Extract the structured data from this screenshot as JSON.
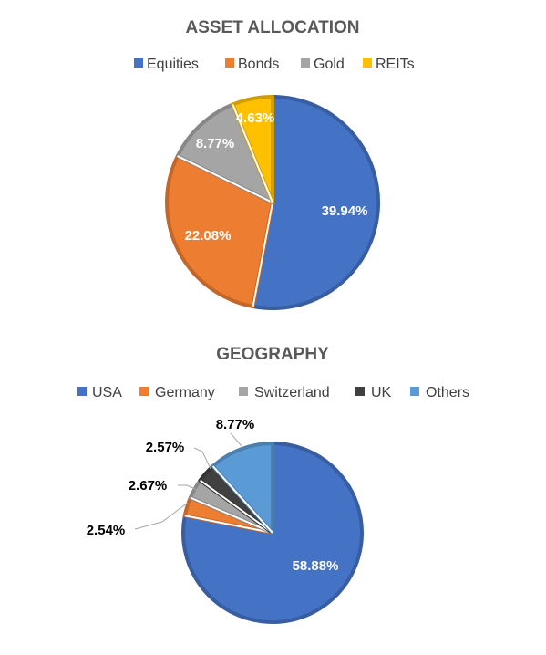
{
  "chart_data": [
    {
      "type": "pie",
      "title": "ASSET ALLOCATION",
      "legend_position": "top",
      "categories": [
        "Equities",
        "Bonds",
        "Gold",
        "REITs"
      ],
      "values": [
        39.94,
        22.08,
        8.77,
        4.63
      ],
      "labels": [
        "39.94%",
        "22.08%",
        "8.77%",
        "4.63%"
      ],
      "colors": [
        "#4472C4",
        "#ED7D31",
        "#A5A5A5",
        "#FFC000"
      ]
    },
    {
      "type": "pie",
      "title": "GEOGRAPHY",
      "legend_position": "top",
      "categories": [
        "USA",
        "Germany",
        "Switzerland",
        "UK",
        "Others"
      ],
      "values": [
        58.88,
        2.54,
        2.67,
        2.57,
        8.77
      ],
      "labels": [
        "58.88%",
        "2.54%",
        "2.67%",
        "2.57%",
        "8.77%"
      ],
      "colors": [
        "#4472C4",
        "#ED7D31",
        "#A5A5A5",
        "#404040",
        "#5B9BD5"
      ]
    }
  ]
}
